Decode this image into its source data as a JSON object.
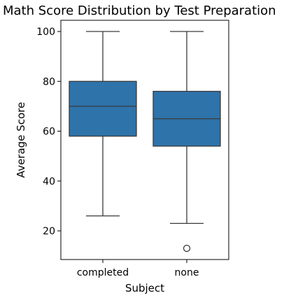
{
  "chart_data": {
    "type": "box",
    "title": "Math Score Distribution by Test Preparation",
    "xlabel": "Subject",
    "ylabel": "Average Score",
    "ylim": [
      8.5,
      104.5
    ],
    "yticks": [
      20,
      40,
      60,
      80,
      100
    ],
    "ytick_labels": [
      "20",
      "40",
      "60",
      "80",
      "100"
    ],
    "grid": false,
    "categories": [
      "completed",
      "none"
    ],
    "boxes": [
      {
        "category": "completed",
        "whisker_low": 26,
        "q1": 58,
        "median": 70,
        "q3": 80,
        "whisker_high": 100,
        "outliers": []
      },
      {
        "category": "none",
        "whisker_low": 23,
        "q1": 54,
        "median": 65,
        "q3": 76,
        "whisker_high": 100,
        "outliers": [
          13
        ]
      }
    ],
    "box_color": "#2e73aa",
    "line_color": "#3a3a3a"
  }
}
